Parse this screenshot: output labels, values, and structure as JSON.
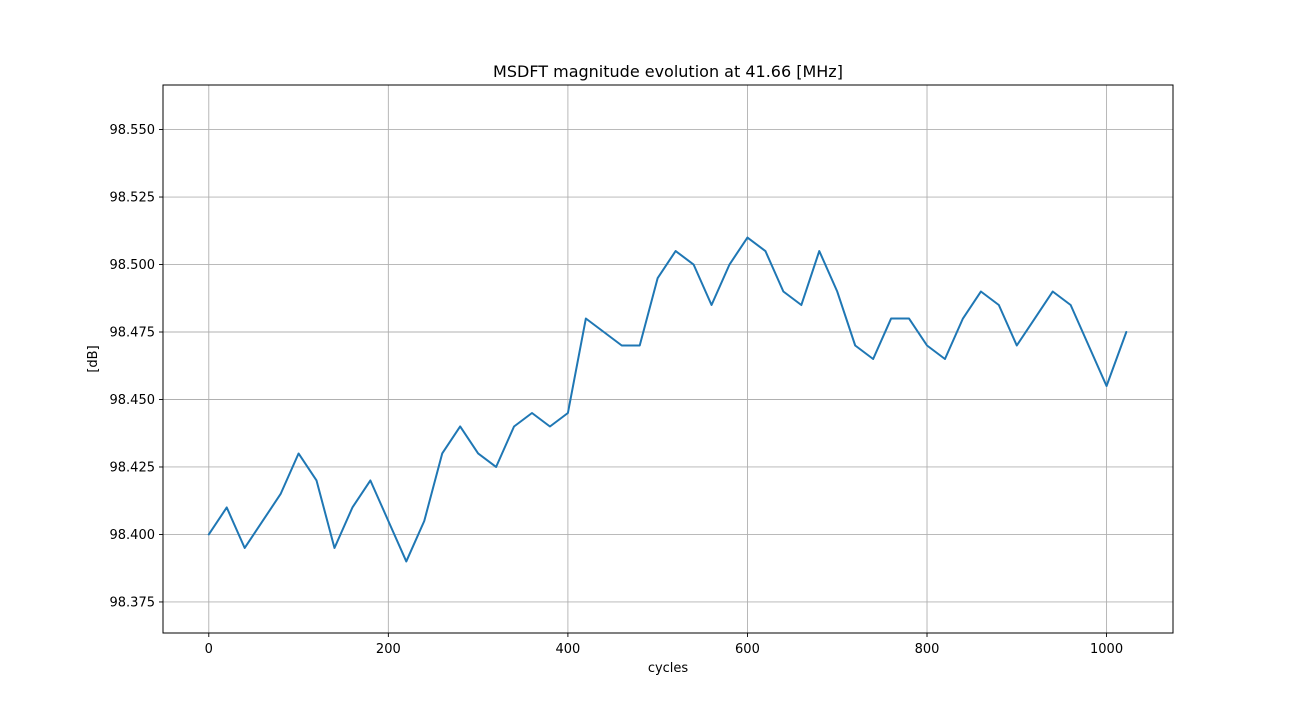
{
  "chart_data": {
    "type": "line",
    "title": "MSDFT magnitude evolution at 41.66 [MHz]",
    "xlabel": "cycles",
    "ylabel": "[dB]",
    "xlim": [
      -51,
      1074
    ],
    "ylim": [
      98.3635,
      98.5665
    ],
    "x_ticks": [
      0,
      200,
      400,
      600,
      800,
      1000
    ],
    "y_ticks": [
      98.375,
      98.4,
      98.425,
      98.45,
      98.475,
      98.5,
      98.525,
      98.55
    ],
    "y_tick_labels": [
      "98.375",
      "98.400",
      "98.425",
      "98.450",
      "98.475",
      "98.500",
      "98.525",
      "98.550"
    ],
    "grid": true,
    "color": "#1f77b4",
    "series": [
      {
        "x": [
          0,
          20,
          40,
          60,
          80,
          100,
          120,
          140,
          160,
          180,
          200,
          220,
          240,
          260,
          280,
          300,
          320,
          340,
          360,
          380,
          400,
          420,
          440,
          460,
          480,
          500,
          520,
          540,
          560,
          580,
          600,
          620,
          640,
          660,
          680,
          700,
          720,
          740,
          760,
          780,
          800,
          820,
          840,
          860,
          880,
          900,
          920,
          940,
          960,
          980,
          1000,
          1022
        ],
        "values": [
          98.4,
          98.41,
          98.395,
          98.405,
          98.415,
          98.43,
          98.42,
          98.395,
          98.41,
          98.42,
          98.405,
          98.39,
          98.405,
          98.43,
          98.44,
          98.43,
          98.425,
          98.44,
          98.445,
          98.44,
          98.445,
          98.48,
          98.475,
          98.47,
          98.47,
          98.495,
          98.505,
          98.5,
          98.485,
          98.5,
          98.51,
          98.505,
          98.49,
          98.485,
          98.505,
          98.49,
          98.47,
          98.465,
          98.48,
          98.48,
          98.47,
          98.465,
          98.48,
          98.49,
          98.485,
          98.47,
          98.48,
          98.49,
          98.485,
          98.47,
          98.455,
          98.475
        ]
      }
    ]
  }
}
